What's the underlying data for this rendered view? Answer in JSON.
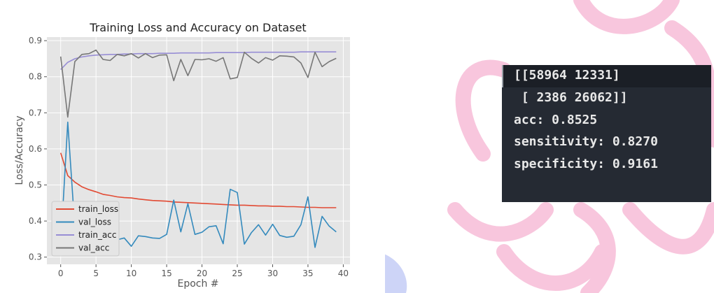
{
  "chart_data": {
    "type": "line",
    "title": "Training Loss and Accuracy on Dataset",
    "xlabel": "Epoch #",
    "ylabel": "Loss/Accuracy",
    "xlim": [
      -1.95,
      40.95
    ],
    "ylim": [
      0.28,
      0.91
    ],
    "x_ticks": [
      0,
      5,
      10,
      15,
      20,
      25,
      30,
      35,
      40
    ],
    "y_ticks": [
      0.3,
      0.4,
      0.5,
      0.6,
      0.7,
      0.8,
      0.9
    ],
    "x_tick_labels": [
      "0",
      "5",
      "10",
      "15",
      "20",
      "25",
      "30",
      "35",
      "40"
    ],
    "y_tick_labels": [
      "0.3",
      "0.4",
      "0.5",
      "0.6",
      "0.7",
      "0.8",
      "0.9"
    ],
    "grid": true,
    "legend_position": "bottom-left",
    "x": [
      0,
      1,
      2,
      3,
      4,
      5,
      6,
      7,
      8,
      9,
      10,
      11,
      12,
      13,
      14,
      15,
      16,
      17,
      18,
      19,
      20,
      21,
      22,
      23,
      24,
      25,
      26,
      27,
      28,
      29,
      30,
      31,
      32,
      33,
      34,
      35,
      36,
      37,
      38,
      39
    ],
    "series": [
      {
        "name": "train_loss",
        "color": "#e24a33",
        "values": [
          0.589,
          0.526,
          0.508,
          0.495,
          0.487,
          0.481,
          0.474,
          0.471,
          0.467,
          0.465,
          0.464,
          0.461,
          0.459,
          0.457,
          0.456,
          0.455,
          0.453,
          0.452,
          0.451,
          0.45,
          0.449,
          0.448,
          0.447,
          0.446,
          0.445,
          0.444,
          0.444,
          0.443,
          0.442,
          0.442,
          0.441,
          0.441,
          0.44,
          0.44,
          0.439,
          0.438,
          0.438,
          0.437,
          0.437,
          0.437
        ]
      },
      {
        "name": "val_loss",
        "color": "#348abd",
        "values": [
          0.33,
          0.674,
          0.382,
          0.362,
          0.355,
          0.356,
          0.355,
          0.388,
          0.348,
          0.353,
          0.33,
          0.359,
          0.357,
          0.353,
          0.352,
          0.363,
          0.458,
          0.37,
          0.448,
          0.363,
          0.369,
          0.384,
          0.387,
          0.337,
          0.488,
          0.479,
          0.336,
          0.368,
          0.39,
          0.361,
          0.391,
          0.36,
          0.355,
          0.358,
          0.39,
          0.467,
          0.327,
          0.413,
          0.386,
          0.37
        ]
      },
      {
        "name": "train_acc",
        "color": "#988ed5",
        "values": [
          0.82,
          0.84,
          0.85,
          0.855,
          0.858,
          0.86,
          0.861,
          0.862,
          0.862,
          0.863,
          0.863,
          0.864,
          0.864,
          0.864,
          0.865,
          0.865,
          0.865,
          0.866,
          0.866,
          0.866,
          0.866,
          0.866,
          0.867,
          0.867,
          0.867,
          0.867,
          0.867,
          0.868,
          0.868,
          0.868,
          0.868,
          0.868,
          0.868,
          0.868,
          0.869,
          0.869,
          0.869,
          0.869,
          0.869,
          0.869
        ]
      },
      {
        "name": "val_acc",
        "color": "#777777",
        "values": [
          0.856,
          0.688,
          0.842,
          0.862,
          0.864,
          0.874,
          0.848,
          0.845,
          0.862,
          0.858,
          0.864,
          0.852,
          0.864,
          0.853,
          0.86,
          0.861,
          0.789,
          0.848,
          0.803,
          0.848,
          0.847,
          0.85,
          0.843,
          0.853,
          0.794,
          0.798,
          0.868,
          0.851,
          0.838,
          0.853,
          0.846,
          0.858,
          0.857,
          0.855,
          0.838,
          0.798,
          0.868,
          0.828,
          0.842,
          0.851
        ]
      }
    ]
  },
  "terminal": {
    "lines": [
      "[[58964 12331]",
      " [ 2386 26062]]",
      "acc: 0.8525",
      "sensitivity: 0.8270",
      "specificity: 0.9161"
    ]
  }
}
